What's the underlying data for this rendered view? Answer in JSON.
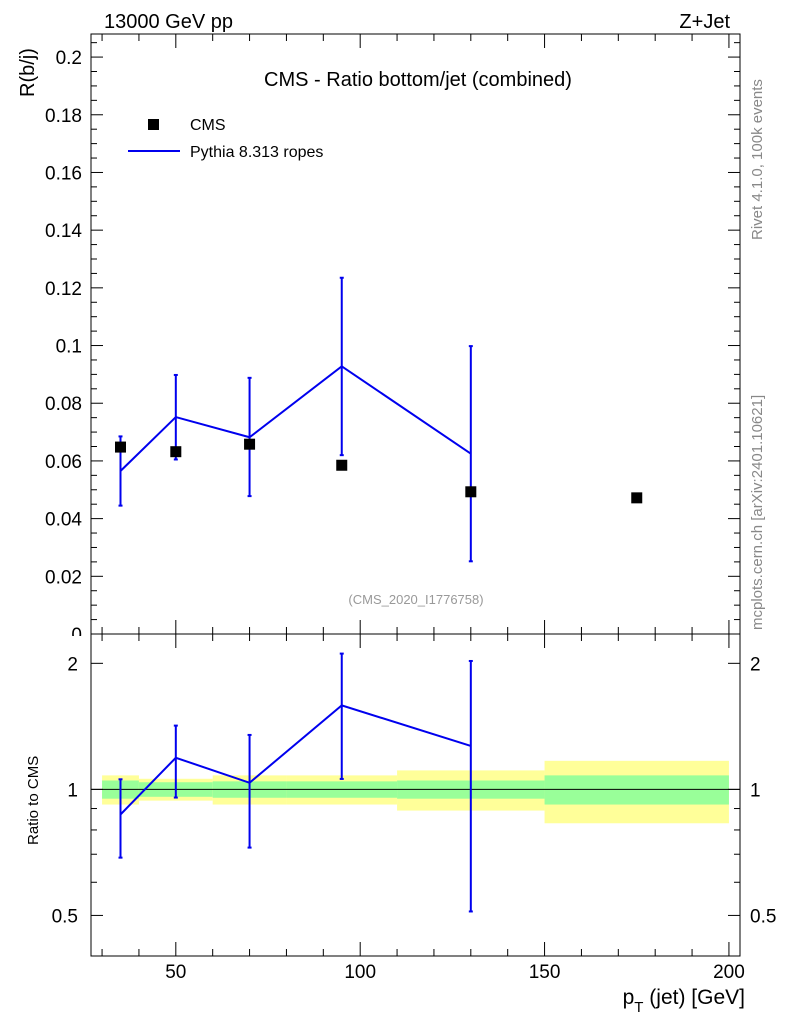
{
  "header": {
    "left_label": "13000 GeV pp",
    "right_label": "Z+Jet"
  },
  "side_labels": {
    "rivet": "Rivet 4.1.0,  100k events",
    "source": "mcplots.cern.ch [arXiv:2401.10621]"
  },
  "colors": {
    "mc_line": "#0000ee",
    "data_marker": "#000000",
    "band_inner": "#99ff99",
    "band_outer": "#ffff99",
    "watermark": "#999999"
  },
  "chart_data": [
    {
      "type": "scatter",
      "title": "CMS - Ratio bottom/jet (combined)",
      "watermark": "(CMS_2020_I1776758)",
      "ylabel": "R(b/j)",
      "xlabel": "",
      "xlim": [
        27,
        203
      ],
      "ylim": [
        0,
        0.208
      ],
      "yticks": [
        0,
        0.02,
        0.04,
        0.06,
        0.08,
        0.1,
        0.12,
        0.14,
        0.16,
        0.18,
        0.2
      ],
      "ytick_labels": [
        "0",
        "0.02",
        "0.04",
        "0.06",
        "0.08",
        "0.1",
        "0.12",
        "0.14",
        "0.16",
        "0.18",
        "0.2"
      ],
      "legend": {
        "position": "top-left",
        "entries": [
          {
            "name": "CMS",
            "kind": "marker"
          },
          {
            "name": "Pythia 8.313 ropes",
            "kind": "line"
          }
        ]
      },
      "series": [
        {
          "name": "CMS",
          "x": [
            35,
            50,
            70,
            95,
            130,
            175
          ],
          "values": [
            0.0648,
            0.0632,
            0.0658,
            0.0585,
            0.0493,
            0.0472
          ]
        },
        {
          "name": "Pythia 8.313 ropes",
          "x": [
            35,
            50,
            70,
            95,
            130
          ],
          "values": [
            0.0565,
            0.0752,
            0.0682,
            0.0928,
            0.0625
          ],
          "err_low": [
            0.0445,
            0.0605,
            0.0478,
            0.062,
            0.0252
          ],
          "err_high": [
            0.0685,
            0.0898,
            0.0888,
            0.1235,
            0.0998
          ]
        }
      ]
    },
    {
      "type": "line",
      "title": "",
      "ylabel": "Ratio to CMS",
      "xlabel": "p_T (jet) [GeV]",
      "xlabel_main": "p",
      "xlabel_sub": "T",
      "xlabel_rest": " (jet) [GeV]",
      "xlim": [
        27,
        203
      ],
      "ylim": [
        0.4,
        2.35
      ],
      "yscale": "log",
      "yticks": [
        0.5,
        1,
        2
      ],
      "ytick_labels": [
        "0.5",
        "1",
        "2"
      ],
      "xticks": [
        50,
        100,
        150,
        200
      ],
      "xtick_labels": [
        "50",
        "100",
        "150",
        "200"
      ],
      "reference_line": 1,
      "uncertainty_bands": [
        {
          "x_low": 30,
          "x_high": 40,
          "inner": [
            0.95,
            1.05
          ],
          "outer": [
            0.92,
            1.08
          ]
        },
        {
          "x_low": 40,
          "x_high": 60,
          "inner": [
            0.96,
            1.04
          ],
          "outer": [
            0.94,
            1.06
          ]
        },
        {
          "x_low": 60,
          "x_high": 80,
          "inner": [
            0.955,
            1.045
          ],
          "outer": [
            0.92,
            1.08
          ]
        },
        {
          "x_low": 80,
          "x_high": 110,
          "inner": [
            0.955,
            1.045
          ],
          "outer": [
            0.92,
            1.08
          ]
        },
        {
          "x_low": 110,
          "x_high": 150,
          "inner": [
            0.95,
            1.05
          ],
          "outer": [
            0.89,
            1.11
          ]
        },
        {
          "x_low": 150,
          "x_high": 200,
          "inner": [
            0.92,
            1.08
          ],
          "outer": [
            0.83,
            1.17
          ]
        }
      ],
      "series": [
        {
          "name": "Pythia 8.313 ropes / CMS",
          "x": [
            35,
            50,
            70,
            95,
            130
          ],
          "values": [
            0.871,
            1.19,
            1.037,
            1.587,
            1.27
          ],
          "err_low": [
            0.687,
            0.956,
            0.726,
            1.059,
            0.511
          ],
          "err_high": [
            1.057,
            1.42,
            1.349,
            2.11,
            2.026
          ]
        }
      ]
    }
  ]
}
